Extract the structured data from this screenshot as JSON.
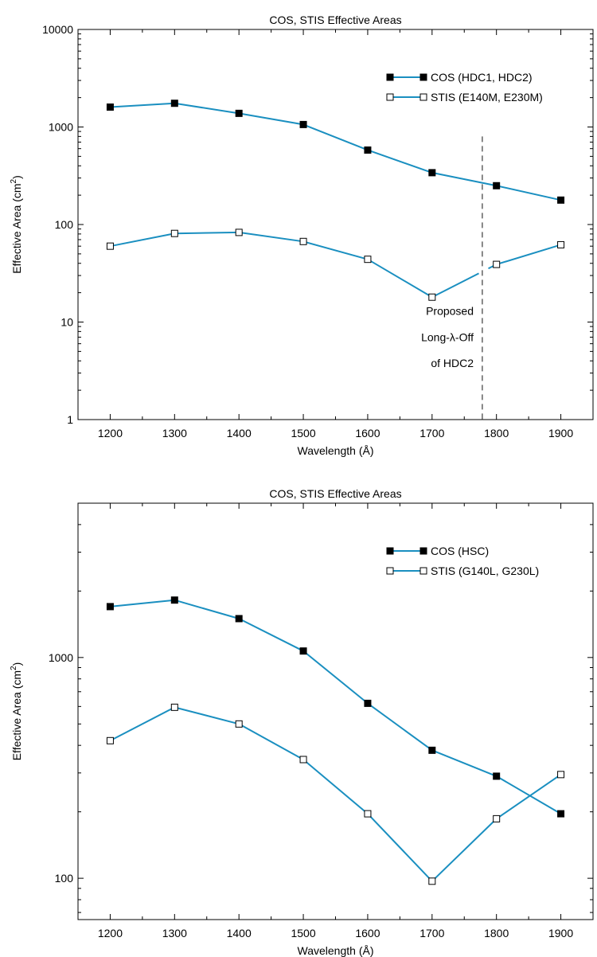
{
  "chart_data": [
    {
      "type": "line",
      "title": "COS, STIS Effective Areas",
      "xlabel": "Wavelength (Å)",
      "ylabel_main": "Effective Area (cm",
      "ylabel_sup": "2",
      "ylabel_close": ")",
      "yscale": "log",
      "xlim": [
        1150,
        1950
      ],
      "ylim": [
        1,
        10000
      ],
      "x_ticks": [
        1200,
        1300,
        1400,
        1500,
        1600,
        1700,
        1800,
        1900
      ],
      "x_tick_labels": [
        "1200",
        "1300",
        "1400",
        "1500",
        "1600",
        "1700",
        "1800",
        "1900"
      ],
      "y_ticks": [
        1,
        10,
        100,
        1000,
        10000
      ],
      "y_tick_labels": [
        "1",
        "10",
        "100",
        "1000",
        "10000"
      ],
      "legend_position": "top-right",
      "line_color": "#1a8fc0",
      "series": [
        {
          "name": "COS (HDC1, HDC2)",
          "marker": "filled-square",
          "x": [
            1200,
            1300,
            1400,
            1500,
            1600,
            1700,
            1800,
            1900
          ],
          "values": [
            1600,
            1750,
            1380,
            1060,
            580,
            340,
            250,
            178
          ]
        },
        {
          "name": "STIS (E140M, E230M)",
          "marker": "open-square",
          "x": [
            1200,
            1300,
            1400,
            1500,
            1600,
            1700,
            1800,
            1900
          ],
          "values": [
            60,
            81,
            83,
            67,
            44,
            18,
            39,
            62
          ],
          "segment_breaks_at": [
            1780
          ]
        }
      ],
      "annotation": {
        "x": 1778,
        "style": "dashed-vertical-line",
        "y_from": 1,
        "y_to": 800,
        "label_lines": [
          "Proposed",
          "Long-λ-Off",
          "of HDC2"
        ],
        "label_y": [
          13,
          7,
          3.8
        ]
      }
    },
    {
      "type": "line",
      "title": "COS, STIS Effective Areas",
      "xlabel": "Wavelength (Å)",
      "ylabel_main": "Effective Area (cm",
      "ylabel_sup": "2",
      "ylabel_close": ")",
      "yscale": "log",
      "xlim": [
        1150,
        1950
      ],
      "ylim": [
        65,
        5000
      ],
      "x_ticks": [
        1200,
        1300,
        1400,
        1500,
        1600,
        1700,
        1800,
        1900
      ],
      "x_tick_labels": [
        "1200",
        "1300",
        "1400",
        "1500",
        "1600",
        "1700",
        "1800",
        "1900"
      ],
      "y_ticks": [
        100,
        1000
      ],
      "y_tick_labels": [
        "100",
        "1000"
      ],
      "legend_position": "top-right",
      "line_color": "#1a8fc0",
      "series": [
        {
          "name": "COS (HSC)",
          "marker": "filled-square",
          "x": [
            1200,
            1300,
            1400,
            1500,
            1600,
            1700,
            1800,
            1900
          ],
          "values": [
            1700,
            1820,
            1500,
            1070,
            620,
            380,
            290,
            196
          ]
        },
        {
          "name": "STIS (G140L, G230L)",
          "marker": "open-square",
          "x": [
            1200,
            1300,
            1400,
            1500,
            1600,
            1700,
            1800,
            1900
          ],
          "values": [
            420,
            595,
            500,
            345,
            196,
            97,
            186,
            295
          ]
        }
      ]
    }
  ]
}
